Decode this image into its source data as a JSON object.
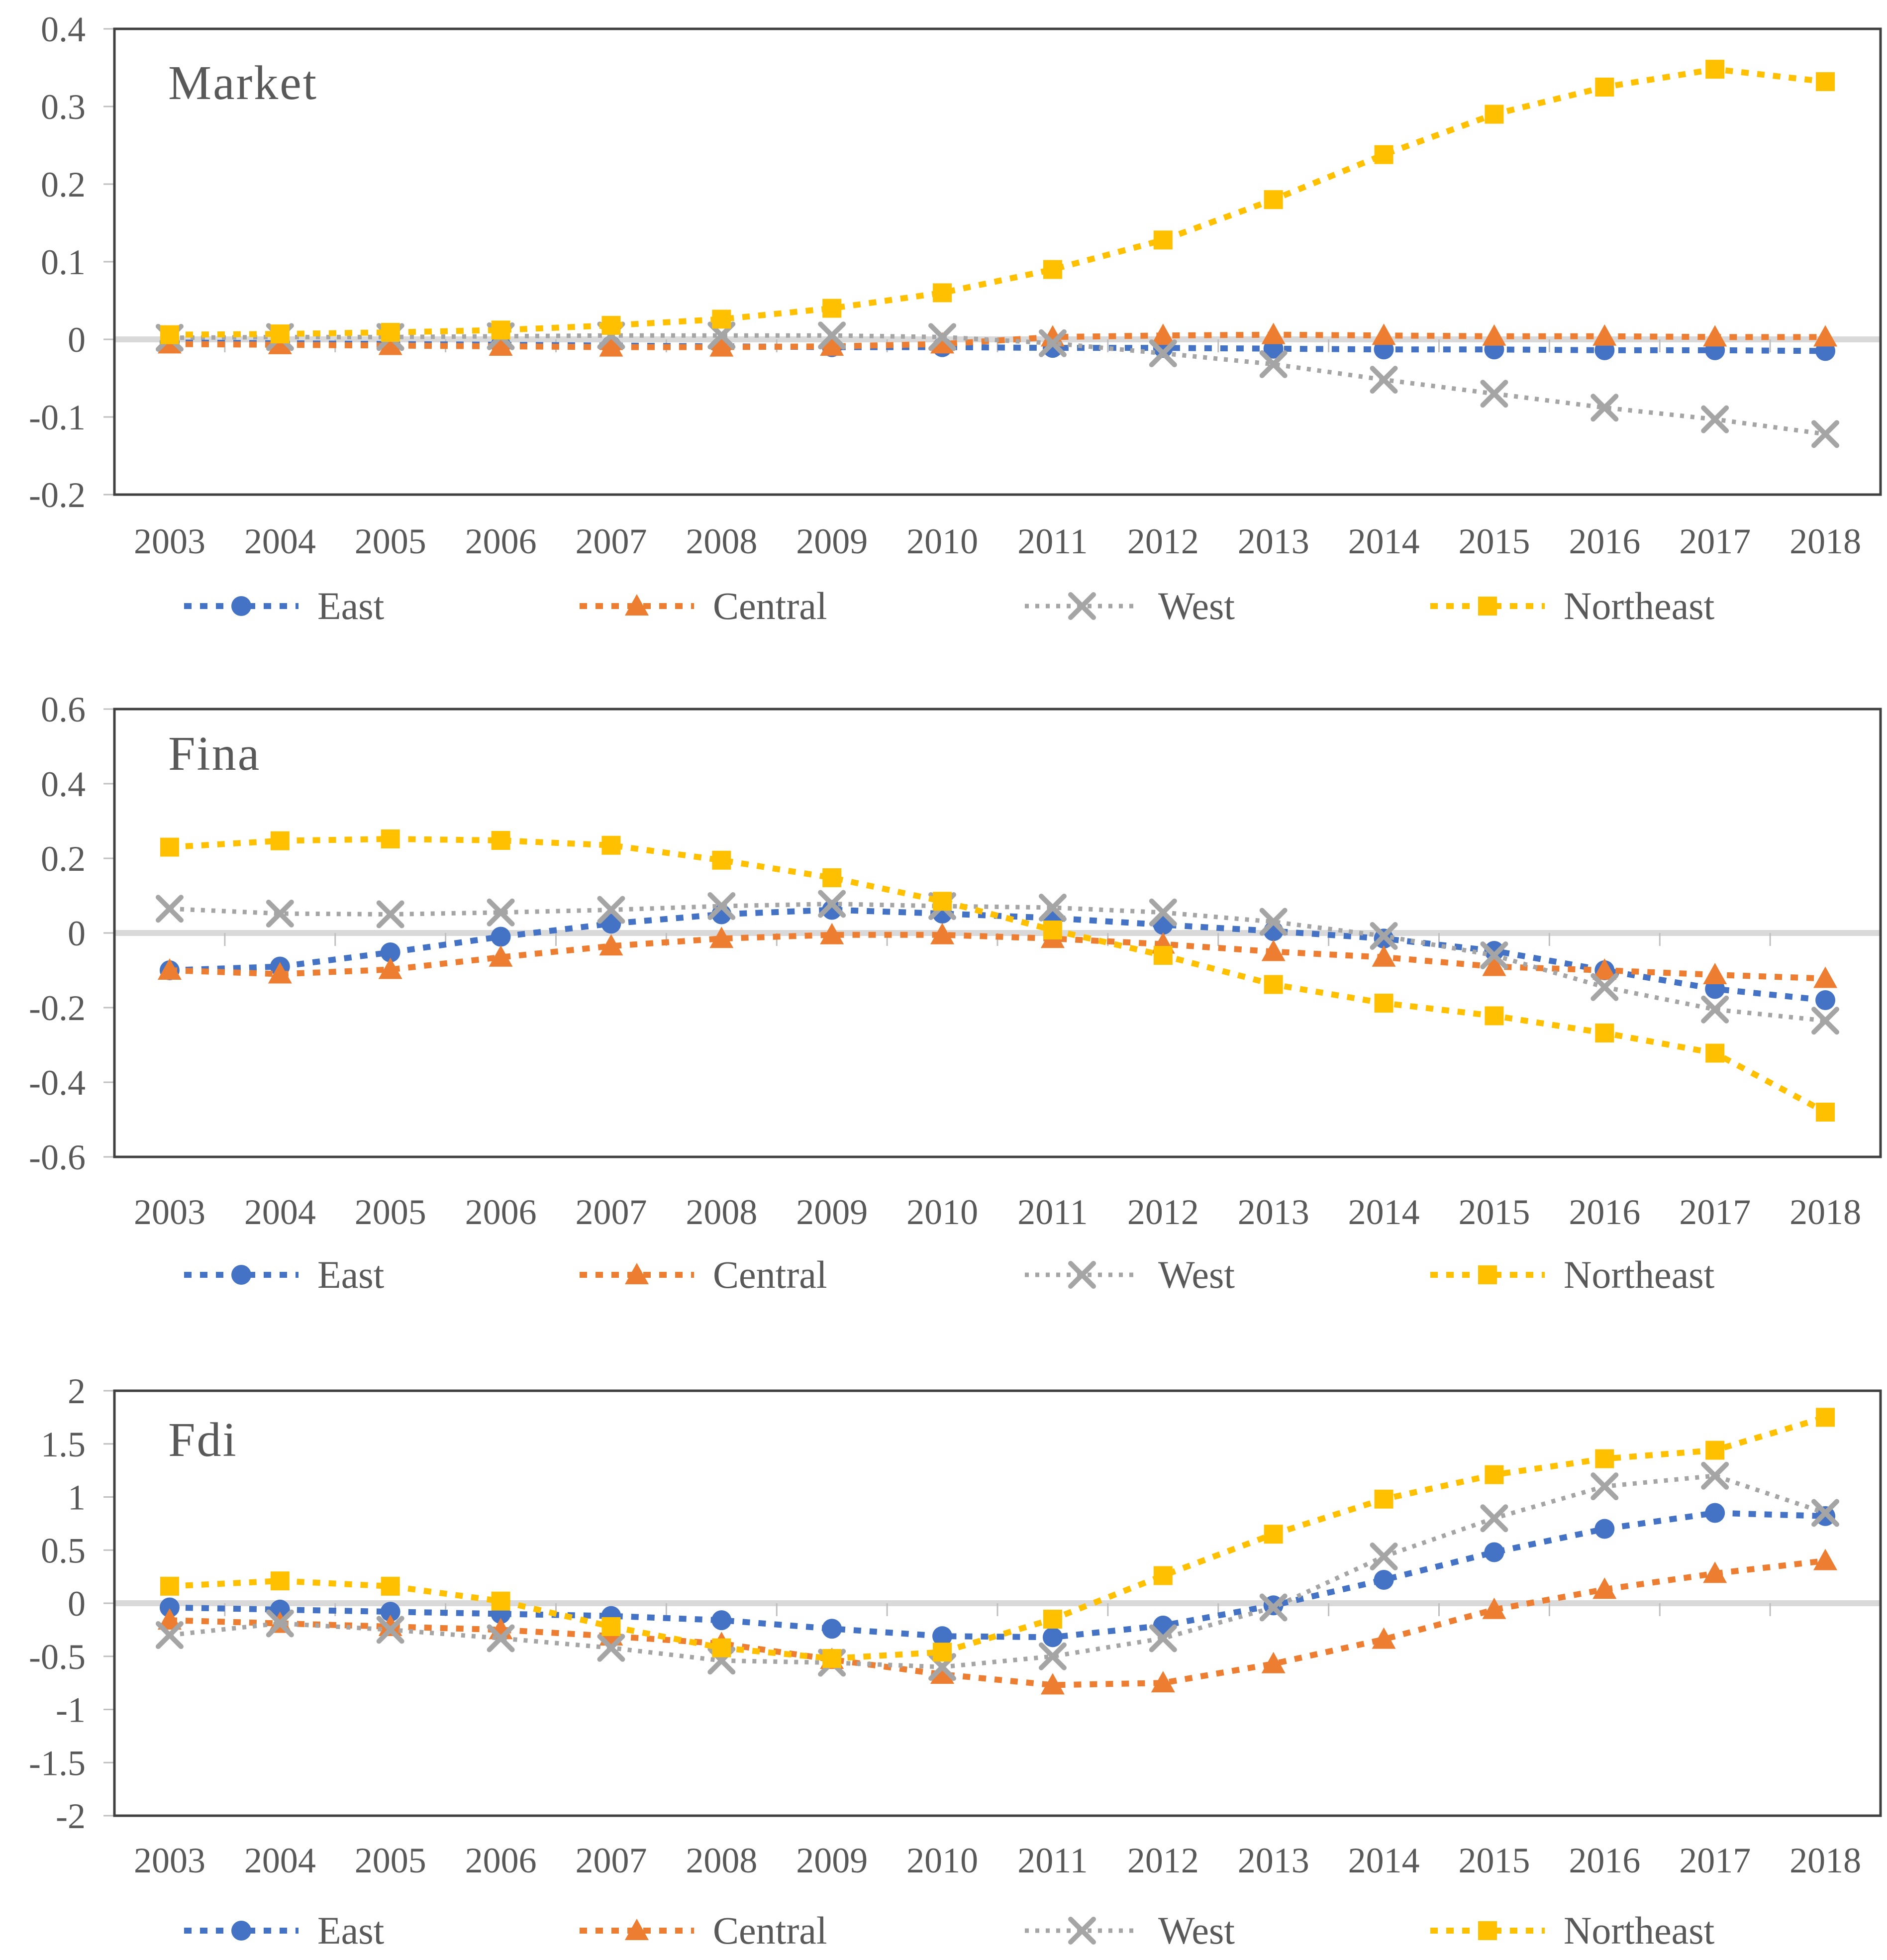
{
  "styles": {
    "east_color": "#4472C4",
    "central_color": "#ED7D31",
    "west_color": "#A5A5A5",
    "northeast_color": "#FFC000",
    "text_color": "#595959",
    "zero_line_color": "#D9D9D9",
    "plot_border_color": "#404040",
    "axis_tick_color": "#BFBFBF"
  },
  "chart_data": [
    {
      "type": "line",
      "title": "Market",
      "categories": [
        "2003",
        "2004",
        "2005",
        "2006",
        "2007",
        "2008",
        "2009",
        "2010",
        "2011",
        "2012",
        "2013",
        "2014",
        "2015",
        "2016",
        "2017",
        "2018"
      ],
      "xlabel": "",
      "ylabel": "",
      "ylim": [
        -0.2,
        0.4
      ],
      "yticks": [
        0.4,
        0.3,
        0.2,
        0.1,
        0,
        -0.1,
        -0.2
      ],
      "ytick_labels": [
        "0.4",
        "0.3",
        "0.2",
        "0.1",
        "0",
        "-0.1",
        "-0.2"
      ],
      "grid": "zero-line-only",
      "legend_position": "bottom",
      "series": [
        {
          "name": "East",
          "marker": "circle",
          "color": "#4472C4",
          "values": [
            -0.004,
            -0.005,
            -0.006,
            -0.007,
            -0.008,
            -0.009,
            -0.01,
            -0.01,
            -0.011,
            -0.011,
            -0.012,
            -0.013,
            -0.013,
            -0.014,
            -0.014,
            -0.015
          ]
        },
        {
          "name": "Central",
          "marker": "triangle",
          "color": "#ED7D31",
          "values": [
            -0.006,
            -0.007,
            -0.008,
            -0.009,
            -0.01,
            -0.01,
            -0.009,
            -0.006,
            0.003,
            0.005,
            0.006,
            0.005,
            0.004,
            0.004,
            0.003,
            0.003
          ]
        },
        {
          "name": "West",
          "marker": "x",
          "color": "#A5A5A5",
          "values": [
            0.002,
            0.003,
            0.003,
            0.004,
            0.005,
            0.005,
            0.005,
            0.003,
            -0.005,
            -0.018,
            -0.032,
            -0.052,
            -0.07,
            -0.088,
            -0.103,
            -0.122
          ]
        },
        {
          "name": "Northeast",
          "marker": "square",
          "color": "#FFC000",
          "values": [
            0.006,
            0.007,
            0.009,
            0.012,
            0.018,
            0.026,
            0.04,
            0.06,
            0.09,
            0.128,
            0.18,
            0.238,
            0.29,
            0.325,
            0.348,
            0.332
          ]
        }
      ]
    },
    {
      "type": "line",
      "title": "Fina",
      "categories": [
        "2003",
        "2004",
        "2005",
        "2006",
        "2007",
        "2008",
        "2009",
        "2010",
        "2011",
        "2012",
        "2013",
        "2014",
        "2015",
        "2016",
        "2017",
        "2018"
      ],
      "xlabel": "",
      "ylabel": "",
      "ylim": [
        -0.6,
        0.6
      ],
      "yticks": [
        0.6,
        0.4,
        0.2,
        0,
        -0.2,
        -0.4,
        -0.6
      ],
      "ytick_labels": [
        "0.6",
        "0.4",
        "0.2",
        "0",
        "-0.2",
        "-0.4",
        "-0.6"
      ],
      "grid": "zero-line-only",
      "legend_position": "bottom",
      "series": [
        {
          "name": "East",
          "marker": "circle",
          "color": "#4472C4",
          "values": [
            -0.1,
            -0.09,
            -0.052,
            -0.01,
            0.025,
            0.05,
            0.062,
            0.052,
            0.04,
            0.022,
            0.005,
            -0.015,
            -0.048,
            -0.1,
            -0.15,
            -0.18
          ]
        },
        {
          "name": "Central",
          "marker": "triangle",
          "color": "#ED7D31",
          "values": [
            -0.1,
            -0.11,
            -0.098,
            -0.065,
            -0.035,
            -0.015,
            -0.005,
            -0.005,
            -0.015,
            -0.03,
            -0.05,
            -0.065,
            -0.09,
            -0.1,
            -0.112,
            -0.122
          ]
        },
        {
          "name": "West",
          "marker": "x",
          "color": "#A5A5A5",
          "values": [
            0.065,
            0.052,
            0.05,
            0.055,
            0.062,
            0.072,
            0.078,
            0.072,
            0.068,
            0.055,
            0.03,
            -0.008,
            -0.06,
            -0.145,
            -0.205,
            -0.235
          ]
        },
        {
          "name": "Northeast",
          "marker": "square",
          "color": "#FFC000",
          "values": [
            0.23,
            0.247,
            0.252,
            0.248,
            0.235,
            0.195,
            0.148,
            0.085,
            0.008,
            -0.06,
            -0.138,
            -0.188,
            -0.222,
            -0.268,
            -0.322,
            -0.48
          ]
        }
      ]
    },
    {
      "type": "line",
      "title": "Fdi",
      "categories": [
        "2003",
        "2004",
        "2005",
        "2006",
        "2007",
        "2008",
        "2009",
        "2010",
        "2011",
        "2012",
        "2013",
        "2014",
        "2015",
        "2016",
        "2017",
        "2018"
      ],
      "xlabel": "",
      "ylabel": "",
      "ylim": [
        -2,
        2
      ],
      "yticks": [
        2,
        1.5,
        1,
        0.5,
        0,
        -0.5,
        -1,
        -1.5,
        -2
      ],
      "ytick_labels": [
        "2",
        "1.5",
        "1",
        "0.5",
        "0",
        "-0.5",
        "-1",
        "-1.5",
        "-2"
      ],
      "grid": "zero-line-only",
      "legend_position": "bottom",
      "series": [
        {
          "name": "East",
          "marker": "circle",
          "color": "#4472C4",
          "values": [
            -0.04,
            -0.06,
            -0.08,
            -0.1,
            -0.12,
            -0.16,
            -0.24,
            -0.31,
            -0.32,
            -0.21,
            -0.02,
            0.22,
            0.48,
            0.7,
            0.85,
            0.82
          ]
        },
        {
          "name": "Central",
          "marker": "triangle",
          "color": "#ED7D31",
          "values": [
            -0.16,
            -0.19,
            -0.22,
            -0.25,
            -0.31,
            -0.38,
            -0.53,
            -0.67,
            -0.77,
            -0.75,
            -0.57,
            -0.34,
            -0.06,
            0.13,
            0.28,
            0.4
          ]
        },
        {
          "name": "West",
          "marker": "x",
          "color": "#A5A5A5",
          "values": [
            -0.3,
            -0.19,
            -0.25,
            -0.33,
            -0.42,
            -0.54,
            -0.56,
            -0.6,
            -0.5,
            -0.33,
            -0.04,
            0.44,
            0.8,
            1.1,
            1.2,
            0.85
          ]
        },
        {
          "name": "Northeast",
          "marker": "square",
          "color": "#FFC000",
          "values": [
            0.16,
            0.21,
            0.16,
            0.02,
            -0.22,
            -0.42,
            -0.52,
            -0.46,
            -0.15,
            0.26,
            0.65,
            0.98,
            1.21,
            1.36,
            1.44,
            1.75
          ]
        }
      ]
    }
  ]
}
